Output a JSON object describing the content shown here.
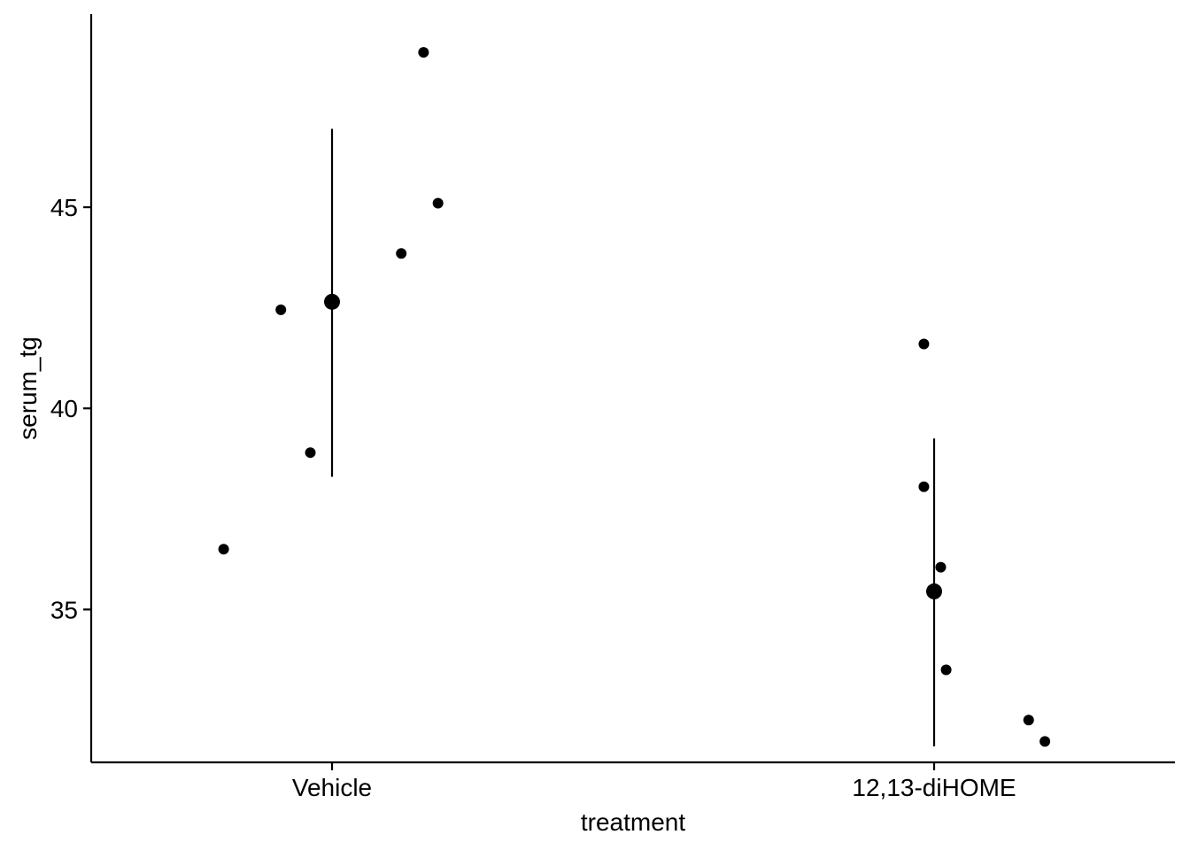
{
  "chart_data": {
    "type": "scatter",
    "title": "",
    "xlabel": "treatment",
    "ylabel": "serum_tg",
    "categories": [
      "Vehicle",
      "12,13-diHOME"
    ],
    "ylim": [
      31.2,
      49.8
    ],
    "yticks": [
      35,
      40,
      45
    ],
    "grid": false,
    "legend": "none",
    "points": [
      {
        "category": "Vehicle",
        "x_jitter": -0.18,
        "y": 36.5
      },
      {
        "category": "Vehicle",
        "x_jitter": -0.085,
        "y": 42.45
      },
      {
        "category": "Vehicle",
        "x_jitter": -0.036,
        "y": 38.9
      },
      {
        "category": "Vehicle",
        "x_jitter": 0.115,
        "y": 43.85
      },
      {
        "category": "Vehicle",
        "x_jitter": 0.152,
        "y": 48.85
      },
      {
        "category": "Vehicle",
        "x_jitter": 0.176,
        "y": 45.1
      },
      {
        "category": "12,13-diHOME",
        "x_jitter": -0.017,
        "y": 41.6
      },
      {
        "category": "12,13-diHOME",
        "x_jitter": -0.017,
        "y": 38.05
      },
      {
        "category": "12,13-diHOME",
        "x_jitter": 0.011,
        "y": 36.05
      },
      {
        "category": "12,13-diHOME",
        "x_jitter": 0.02,
        "y": 33.5
      },
      {
        "category": "12,13-diHOME",
        "x_jitter": 0.157,
        "y": 32.25
      },
      {
        "category": "12,13-diHOME",
        "x_jitter": 0.184,
        "y": 31.72
      }
    ],
    "summary": [
      {
        "category": "Vehicle",
        "mean": 42.65,
        "lower": 38.3,
        "upper": 46.95
      },
      {
        "category": "12,13-diHOME",
        "mean": 35.45,
        "lower": 31.6,
        "upper": 39.25
      }
    ],
    "colors": {
      "points": "#000000",
      "axis": "#000000"
    }
  }
}
